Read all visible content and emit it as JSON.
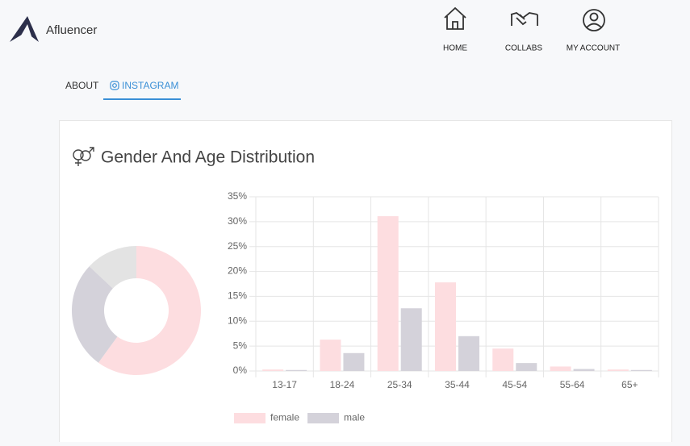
{
  "header": {
    "brand": "Afluencer",
    "nav": [
      "HOME",
      "COLLABS",
      "MY ACCOUNT"
    ]
  },
  "tabs": [
    "ABOUT",
    "INSTAGRAM"
  ],
  "card": {
    "title": "Gender And Age Distribution"
  },
  "chart_data": [
    {
      "type": "pie",
      "donut": true,
      "values": [
        60,
        27,
        13
      ],
      "colors": [
        "#fddde0",
        "#d4d2da",
        "#e3e3e3"
      ]
    },
    {
      "type": "bar",
      "categories": [
        "13-17",
        "18-24",
        "25-34",
        "35-44",
        "45-54",
        "55-64",
        "65+"
      ],
      "series": [
        {
          "name": "female",
          "color": "#fddde0",
          "values": [
            0.3,
            6.3,
            31.1,
            17.8,
            4.5,
            0.9,
            0.3
          ]
        },
        {
          "name": "male",
          "color": "#d4d2da",
          "values": [
            0.2,
            3.6,
            12.6,
            7.0,
            1.6,
            0.4,
            0.2
          ]
        }
      ],
      "ylim": [
        0,
        35
      ],
      "yticks": [
        {
          "value": 0,
          "label": "0%"
        },
        {
          "value": 5,
          "label": "5%"
        },
        {
          "value": 10,
          "label": "10%"
        },
        {
          "value": 15,
          "label": "15%"
        },
        {
          "value": 20,
          "label": "20%"
        },
        {
          "value": 25,
          "label": "25%"
        },
        {
          "value": 30,
          "label": "30%"
        },
        {
          "value": 35,
          "label": "35%"
        }
      ],
      "grid": true,
      "legend": "bottom"
    }
  ]
}
